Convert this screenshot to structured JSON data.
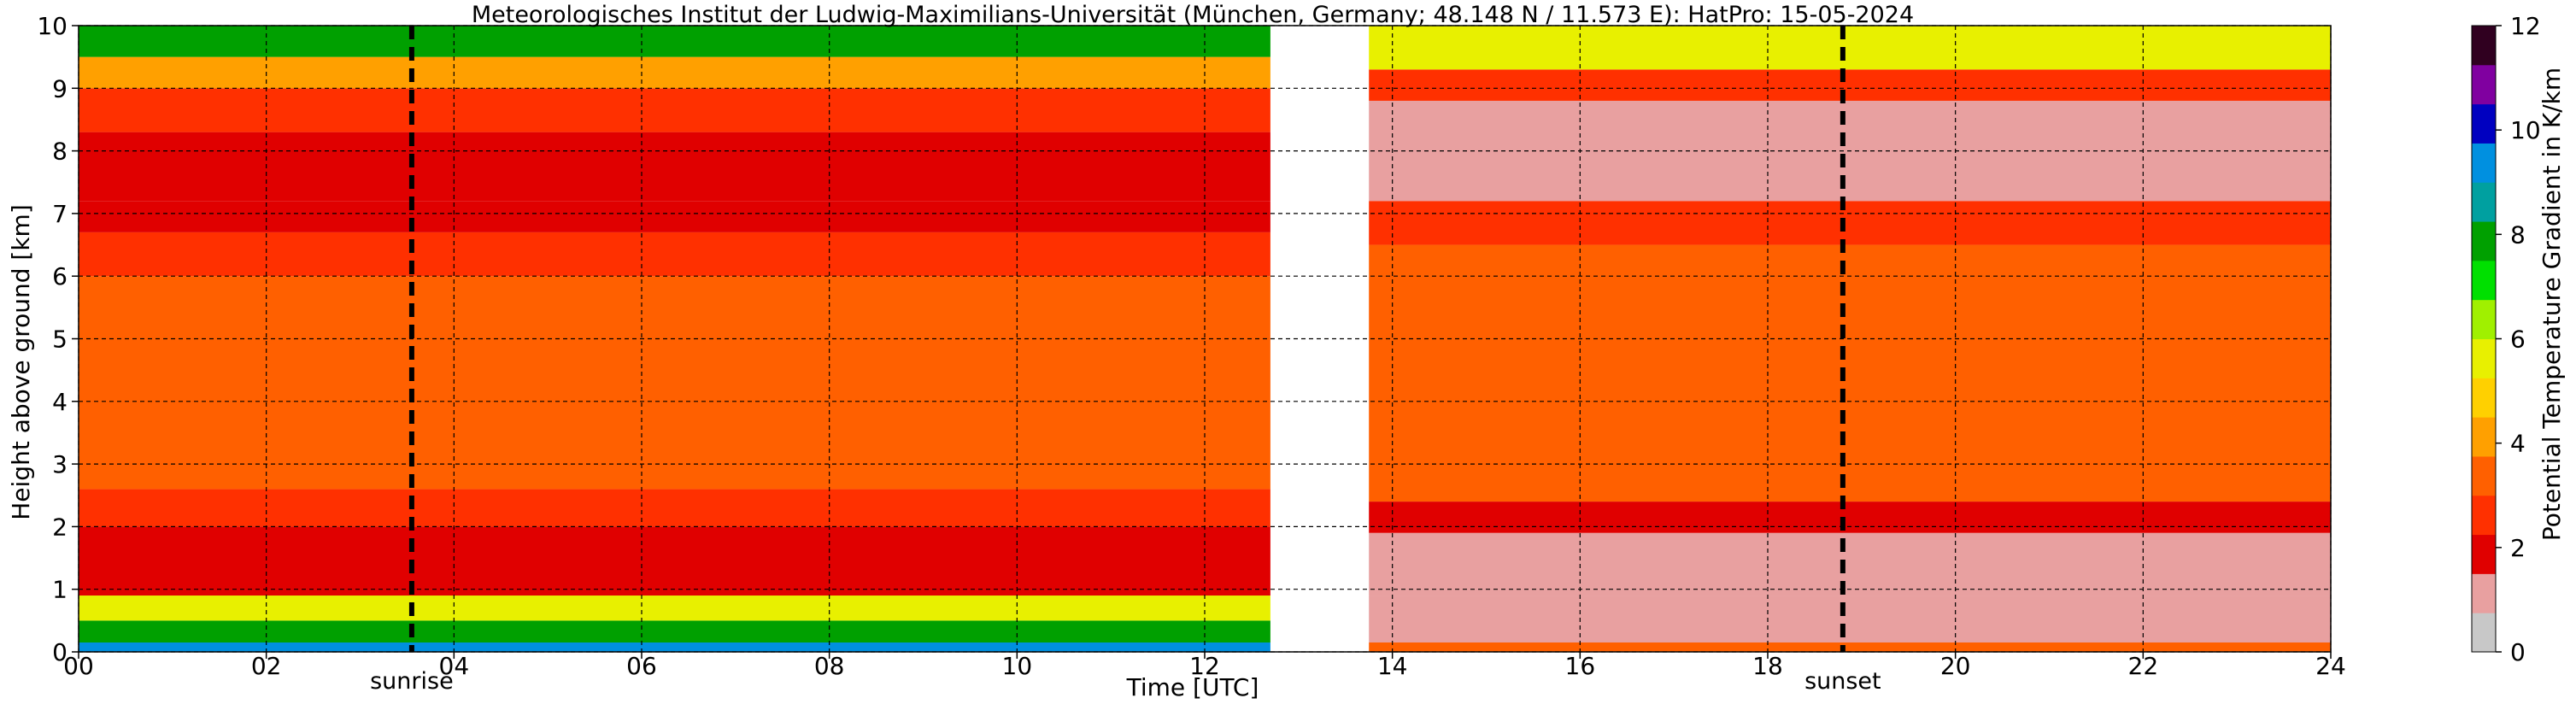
{
  "chart_data": {
    "type": "heatmap",
    "title": "Meteorologisches Institut der Ludwig-Maximilians-Universität (München, Germany; 48.148 N / 11.573 E):    HatPro: 15-05-2024",
    "xlabel": "Time [UTC]",
    "ylabel": "Height above ground [km]",
    "xlim": [
      0,
      24
    ],
    "ylim": [
      0,
      10
    ],
    "x_ticks": [
      "00",
      "02",
      "04",
      "06",
      "08",
      "10",
      "12",
      "14",
      "16",
      "18",
      "20",
      "22",
      "24"
    ],
    "y_ticks": [
      "0",
      "1",
      "2",
      "3",
      "4",
      "5",
      "6",
      "7",
      "8",
      "9",
      "10"
    ],
    "grid": true,
    "colorbar": {
      "label": "Potential Temperature Gradient in K/km",
      "range": [
        0,
        12
      ],
      "ticks": [
        "0",
        "2",
        "4",
        "6",
        "8",
        "10",
        "12"
      ],
      "colors": [
        "#c8c8c8",
        "#e8a0a0",
        "#e00000",
        "#ff3000",
        "#ff6000",
        "#ffa000",
        "#ffd000",
        "#e8f000",
        "#a0f000",
        "#00e000",
        "#00a000",
        "#00a0a0",
        "#0090e0",
        "#0000c0",
        "#8000a0",
        "#300020"
      ]
    },
    "events": [
      {
        "label": "sunrise",
        "time": 3.55
      },
      {
        "label": "sunset",
        "time": 18.8
      }
    ],
    "data_gaps": [
      [
        12.7,
        13.75
      ]
    ],
    "profile_before_gap": [
      {
        "from": 0.0,
        "to": 0.15,
        "value": 9.5
      },
      {
        "from": 0.15,
        "to": 0.5,
        "value": 7.5
      },
      {
        "from": 0.5,
        "to": 0.9,
        "value": 5.5
      },
      {
        "from": 0.9,
        "to": 2.0,
        "value": 1.5
      },
      {
        "from": 2.0,
        "to": 2.6,
        "value": 2.6
      },
      {
        "from": 2.6,
        "to": 5.0,
        "value": 3.6
      },
      {
        "from": 5.0,
        "to": 6.0,
        "value": 3.2
      },
      {
        "from": 6.0,
        "to": 6.7,
        "value": 2.7
      },
      {
        "from": 6.7,
        "to": 7.2,
        "value": 2.1
      },
      {
        "from": 7.2,
        "to": 8.3,
        "value": 1.9
      },
      {
        "from": 8.3,
        "to": 9.0,
        "value": 2.8
      },
      {
        "from": 9.0,
        "to": 9.5,
        "value": 4.2
      },
      {
        "from": 9.5,
        "to": 10.0,
        "value": 7.5
      }
    ],
    "profile_after_gap": [
      {
        "from": 0.0,
        "to": 0.15,
        "value": 3.5
      },
      {
        "from": 0.15,
        "to": 0.9,
        "value": 1.3
      },
      {
        "from": 0.9,
        "to": 1.9,
        "value": 1.2
      },
      {
        "from": 1.9,
        "to": 2.4,
        "value": 2.2
      },
      {
        "from": 2.4,
        "to": 5.0,
        "value": 3.6
      },
      {
        "from": 5.0,
        "to": 6.5,
        "value": 3.0
      },
      {
        "from": 6.5,
        "to": 7.2,
        "value": 2.3
      },
      {
        "from": 7.2,
        "to": 8.8,
        "value": 1.4
      },
      {
        "from": 8.8,
        "to": 9.3,
        "value": 2.6
      },
      {
        "from": 9.3,
        "to": 10.0,
        "value": 5.5
      }
    ]
  }
}
